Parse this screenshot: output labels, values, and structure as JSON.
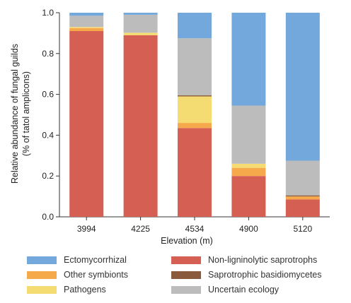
{
  "chart_data": {
    "type": "bar",
    "stacked": true,
    "xlabel": "Elevation (m)",
    "ylabel_lines": [
      "Relative abundance of fungal guilds",
      "(% of tatol amplicons)"
    ],
    "ylim": [
      0,
      1
    ],
    "yticks": [
      "0.0",
      "0.2",
      "0.4",
      "0.6",
      "0.8",
      "1.0"
    ],
    "categories": [
      "3994",
      "4225",
      "4534",
      "4900",
      "5120"
    ],
    "series": [
      {
        "name": "Non-ligninolytic saprotrophs",
        "color": "#d45f52",
        "values": [
          0.91,
          0.89,
          0.435,
          0.2,
          0.085
        ]
      },
      {
        "name": "Other symbionts",
        "color": "#f5a94a",
        "values": [
          0.015,
          0.0,
          0.025,
          0.04,
          0.015
        ]
      },
      {
        "name": "Pathogens",
        "color": "#f5dc72",
        "values": [
          0.005,
          0.012,
          0.13,
          0.02,
          0.0
        ]
      },
      {
        "name": "Saprotrophic basidiomycetes",
        "color": "#8a5a3c",
        "values": [
          0.0,
          0.0,
          0.005,
          0.0,
          0.005
        ]
      },
      {
        "name": "Uncertain ecology",
        "color": "#bcbcbc",
        "values": [
          0.055,
          0.088,
          0.28,
          0.285,
          0.17
        ]
      },
      {
        "name": "Ectomycorrhizal",
        "color": "#72a8dc",
        "values": [
          0.015,
          0.01,
          0.125,
          0.455,
          0.725
        ]
      }
    ]
  },
  "legend": {
    "items": [
      {
        "label": "Ectomycorrhizal",
        "color": "#72a8dc"
      },
      {
        "label": "Non-ligninolytic saprotrophs",
        "color": "#d45f52"
      },
      {
        "label": "Other symbionts",
        "color": "#f5a94a"
      },
      {
        "label": "Saprotrophic basidiomycetes",
        "color": "#8a5a3c"
      },
      {
        "label": "Pathogens",
        "color": "#f5dc72"
      },
      {
        "label": "Uncertain ecology",
        "color": "#bcbcbc"
      }
    ]
  }
}
